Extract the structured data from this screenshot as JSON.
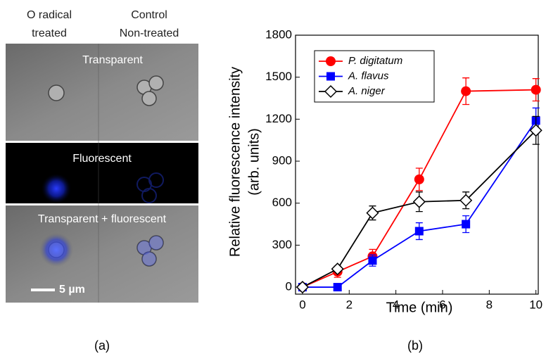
{
  "panel_a": {
    "column_headers": [
      [
        "O radical",
        "treated"
      ],
      [
        "Control",
        "Non-treated"
      ]
    ],
    "row_labels": [
      "Transparent",
      "Fluorescent",
      "Transparent + fluorescent"
    ],
    "scale_bar": "5 µm"
  },
  "panel_labels": [
    "(a)",
    "(b)"
  ],
  "chart_data": {
    "type": "line",
    "xlabel": "Time (min)",
    "ylabel": [
      "Relative fluorescence intensity",
      "(arb. units)"
    ],
    "x": [
      0,
      1.5,
      3,
      5,
      7,
      10
    ],
    "series": [
      {
        "name": "P. digitatum",
        "color": "#ff0000",
        "marker": "circle",
        "values": [
          0,
          110,
          220,
          770,
          1400,
          1410
        ],
        "errors": [
          10,
          40,
          50,
          80,
          95,
          80
        ]
      },
      {
        "name": "A. flavus",
        "color": "#0000ff",
        "marker": "square",
        "values": [
          0,
          0,
          190,
          400,
          450,
          1190
        ],
        "errors": [
          10,
          10,
          40,
          60,
          60,
          90
        ]
      },
      {
        "name": "A. niger",
        "color": "#000000",
        "marker": "diamond",
        "values": [
          0,
          130,
          530,
          610,
          620,
          1120
        ],
        "errors": [
          10,
          20,
          50,
          70,
          60,
          100
        ]
      }
    ],
    "xlim": [
      -0.3,
      10.1
    ],
    "xticks": [
      0,
      2,
      4,
      6,
      8,
      10
    ],
    "ylim": [
      -50,
      1800
    ],
    "yticks": [
      0,
      300,
      600,
      900,
      1200,
      1500,
      1800
    ],
    "legend": "upper-left"
  }
}
